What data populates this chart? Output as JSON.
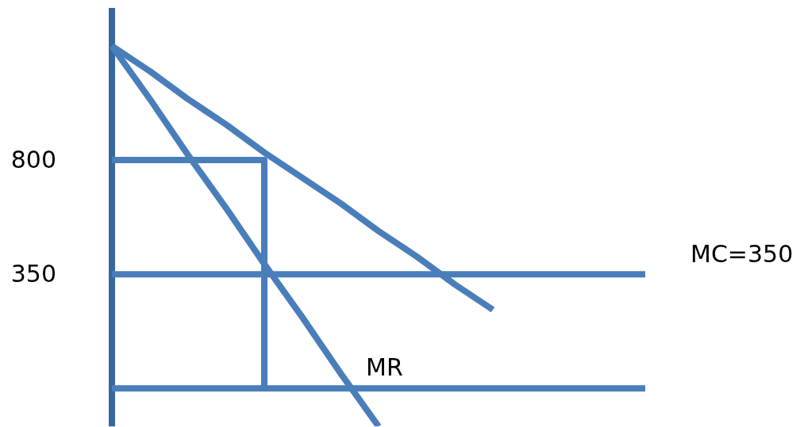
{
  "chart_data": {
    "type": "line",
    "categories": [
      null,
      null,
      null,
      null,
      null,
      null,
      null,
      null,
      null,
      null,
      null,
      null,
      null,
      null,
      null
    ],
    "ylim": [
      -250,
      1400
    ],
    "yticks": [
      350,
      800
    ],
    "tick_labels": "y",
    "marker": "none",
    "series": [
      {
        "color": "#4a7ebb",
        "values": [
          1250,
          1150,
          1040,
          940,
          830,
          730,
          630,
          520,
          420,
          310,
          210,
          null,
          null,
          null,
          null
        ]
      },
      {
        "name": "MR",
        "color": "#4a7ebb",
        "values": [
          1250,
          1040,
          820,
          610,
          390,
          180,
          -40,
          -250,
          null,
          null,
          null,
          null,
          null,
          null,
          null
        ]
      },
      {
        "type": "step",
        "color": "#4a7ebb",
        "values": [
          800,
          800,
          800,
          800,
          -100,
          null,
          null,
          null,
          null,
          null,
          null,
          null,
          null,
          null,
          null
        ]
      }
    ],
    "ref_lines": [
      {
        "axis": "y",
        "value": 350,
        "label": "MC=350",
        "color": "#4a7ebb"
      },
      {
        "axis": "y",
        "value": -100,
        "color": "#4a7ebb"
      }
    ]
  }
}
